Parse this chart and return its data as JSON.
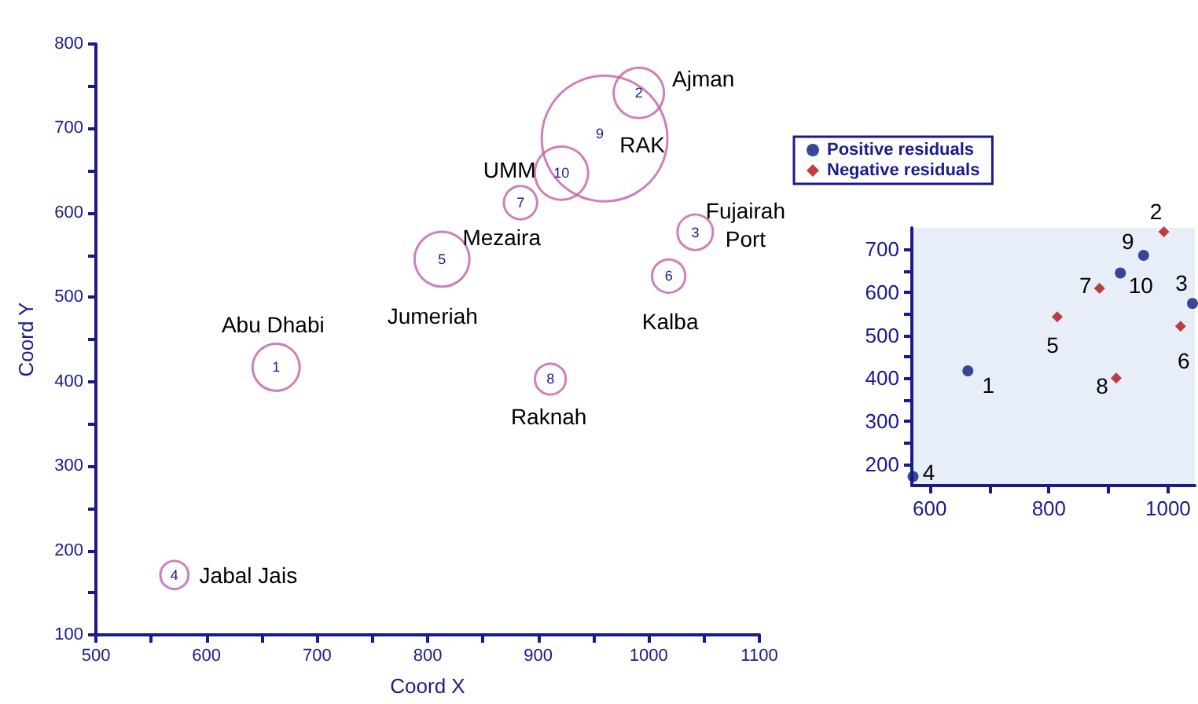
{
  "chart_data": [
    {
      "type": "bubble",
      "xlabel": "Coord X",
      "ylabel": "Coord Y",
      "marker": "circle",
      "xlim": [
        500,
        1100
      ],
      "xticks": [
        500,
        {
          "value": 550,
          "label": null
        },
        600,
        {
          "value": 650,
          "label": null
        },
        700,
        {
          "value": 750,
          "label": null
        },
        800,
        {
          "value": 850,
          "label": null
        },
        900,
        {
          "value": 950,
          "label": null
        },
        1000,
        {
          "value": 1050,
          "label": null
        },
        1100
      ],
      "ylim": [
        100,
        800
      ],
      "yticks": [
        100,
        {
          "value": 150,
          "label": null
        },
        200,
        {
          "value": 250,
          "label": null
        },
        300,
        {
          "value": 350,
          "label": null
        },
        400,
        {
          "value": 450,
          "label": null
        },
        500,
        {
          "value": 550,
          "label": null
        },
        600,
        {
          "value": 650,
          "label": null
        },
        700,
        {
          "value": 750,
          "label": null
        },
        800
      ],
      "series": [
        {
          "color": "#c060a8",
          "x": [
            663,
            991,
            1042,
            571,
            813,
            1018,
            884,
            911,
            960,
            921
          ],
          "values": [
            417,
            742,
            577,
            171,
            545,
            525,
            612,
            403,
            688,
            647
          ],
          "sizes": [
            0.14,
            0.16,
            0.08,
            0.05,
            0.19,
            0.07,
            0.07,
            0.06,
            1,
            0.18
          ]
        }
      ],
      "annotations": [
        {
          "text": "Abu Dhabi",
          "x": 663,
          "y": 417
        },
        {
          "text": "Ajman",
          "x": 991,
          "y": 742
        },
        {
          "text": "Fujairah\nPort",
          "x": 1042,
          "y": 577
        },
        {
          "text": "Jabal Jais",
          "x": 571,
          "y": 171
        },
        {
          "text": "Jumeriah",
          "x": 813,
          "y": 545
        },
        {
          "text": "Kalba",
          "x": 1018,
          "y": 525
        },
        {
          "text": "Mezaira",
          "x": 884,
          "y": 612
        },
        {
          "text": "Raknah",
          "x": 911,
          "y": 403
        },
        {
          "text": "RAK",
          "x": 960,
          "y": 688
        },
        {
          "text": "UMM",
          "x": 921,
          "y": 647
        },
        {
          "text": "1",
          "x": 663,
          "y": 417
        },
        {
          "text": "2",
          "x": 991,
          "y": 742
        },
        {
          "text": "3",
          "x": 1042,
          "y": 577
        },
        {
          "text": "4",
          "x": 571,
          "y": 171
        },
        {
          "text": "5",
          "x": 813,
          "y": 545
        },
        {
          "text": "6",
          "x": 1018,
          "y": 525
        },
        {
          "text": "7",
          "x": 884,
          "y": 612
        },
        {
          "text": "8",
          "x": 911,
          "y": 403
        },
        {
          "text": "9",
          "x": 960,
          "y": 688
        },
        {
          "text": "10",
          "x": 921,
          "y": 647
        }
      ]
    },
    {
      "type": "scatter",
      "legend": "top",
      "xlim": [
        570,
        1045
      ],
      "xticks": [
        600,
        {
          "value": 700,
          "label": null
        },
        800,
        {
          "value": 900,
          "label": null
        },
        1000
      ],
      "ylim": [
        150,
        750
      ],
      "yticks": [
        200,
        {
          "value": 250,
          "label": null
        },
        300,
        {
          "value": 350,
          "label": null
        },
        400,
        {
          "value": 450,
          "label": null
        },
        500,
        {
          "value": 550,
          "label": null
        },
        600,
        {
          "value": 650,
          "label": null
        },
        700
      ],
      "series": [
        {
          "name": "Positive residuals",
          "color": "#0a1a80",
          "marker": "circle",
          "x": [
            664,
            572,
            959,
            920,
            1041
          ],
          "values": [
            417,
            171,
            686,
            645,
            574
          ]
        },
        {
          "name": "Negative residuals",
          "color": "#b01010",
          "marker": "diamond",
          "x": [
            993,
            814,
            885,
            913,
            1021
          ],
          "values": [
            741,
            543,
            609,
            400,
            521
          ]
        }
      ],
      "annotations": [
        {
          "text": "1",
          "x": 664,
          "y": 417
        },
        {
          "text": "4",
          "x": 572,
          "y": 171
        },
        {
          "text": "9",
          "x": 959,
          "y": 686
        },
        {
          "text": "10",
          "x": 920,
          "y": 645
        },
        {
          "text": "3",
          "x": 1041,
          "y": 574
        },
        {
          "text": "2",
          "x": 993,
          "y": 741
        },
        {
          "text": "5",
          "x": 814,
          "y": 543
        },
        {
          "text": "7",
          "x": 885,
          "y": 609
        },
        {
          "text": "8",
          "x": 913,
          "y": 400
        },
        {
          "text": "6",
          "x": 1021,
          "y": 521
        }
      ]
    }
  ]
}
